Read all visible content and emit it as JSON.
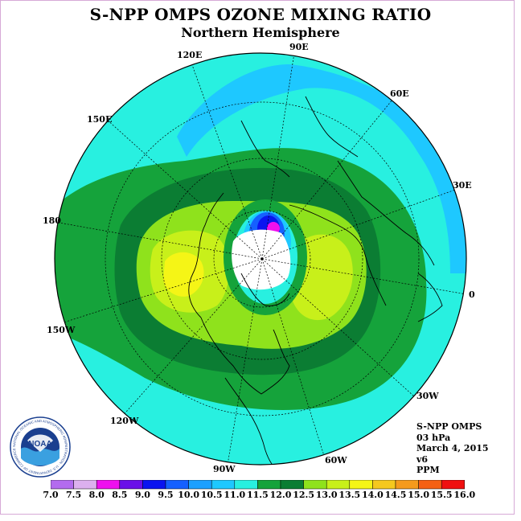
{
  "header": {
    "title": "S-NPP OMPS OZONE MIXING RATIO",
    "subtitle": "Northern Hemisphere"
  },
  "map": {
    "projection": "north-polar-stereographic",
    "longitude_labels": [
      "90E",
      "60E",
      "30E",
      "0",
      "30W",
      "60W",
      "90W",
      "120W",
      "150W",
      "180",
      "150E",
      "120E"
    ],
    "polar_night_region_color": "#ffffff",
    "coastline_color": "#000000"
  },
  "info": {
    "instrument": "S-NPP OMPS",
    "level": "03 hPa",
    "date": "March 4, 2015",
    "version": "v6",
    "units": "PPM"
  },
  "colorbar": {
    "labels": [
      "7.0",
      "7.5",
      "8.0",
      "8.5",
      "9.0",
      "9.5",
      "10.0",
      "10.5",
      "11.0",
      "11.5",
      "12.0",
      "12.5",
      "13.0",
      "13.5",
      "14.0",
      "14.5",
      "15.0",
      "15.5",
      "16.0"
    ],
    "colors": [
      "#b36bee",
      "#dcb0ee",
      "#ee10ee",
      "#6a10e8",
      "#0a14f0",
      "#1560ff",
      "#1ba0ff",
      "#1ec8ff",
      "#28f0e0",
      "#15a33b",
      "#0b7d33",
      "#8fe21c",
      "#c8f01a",
      "#f5f516",
      "#f5c81e",
      "#f59a1c",
      "#f56014",
      "#f01010",
      "#8e5a3c"
    ]
  },
  "logo": {
    "text": "NOAA",
    "ring_text": "NATIONAL OCEANIC AND ATMOSPHERIC ADMINISTRATION · U.S. DEPARTMENT OF COMMERCE"
  }
}
